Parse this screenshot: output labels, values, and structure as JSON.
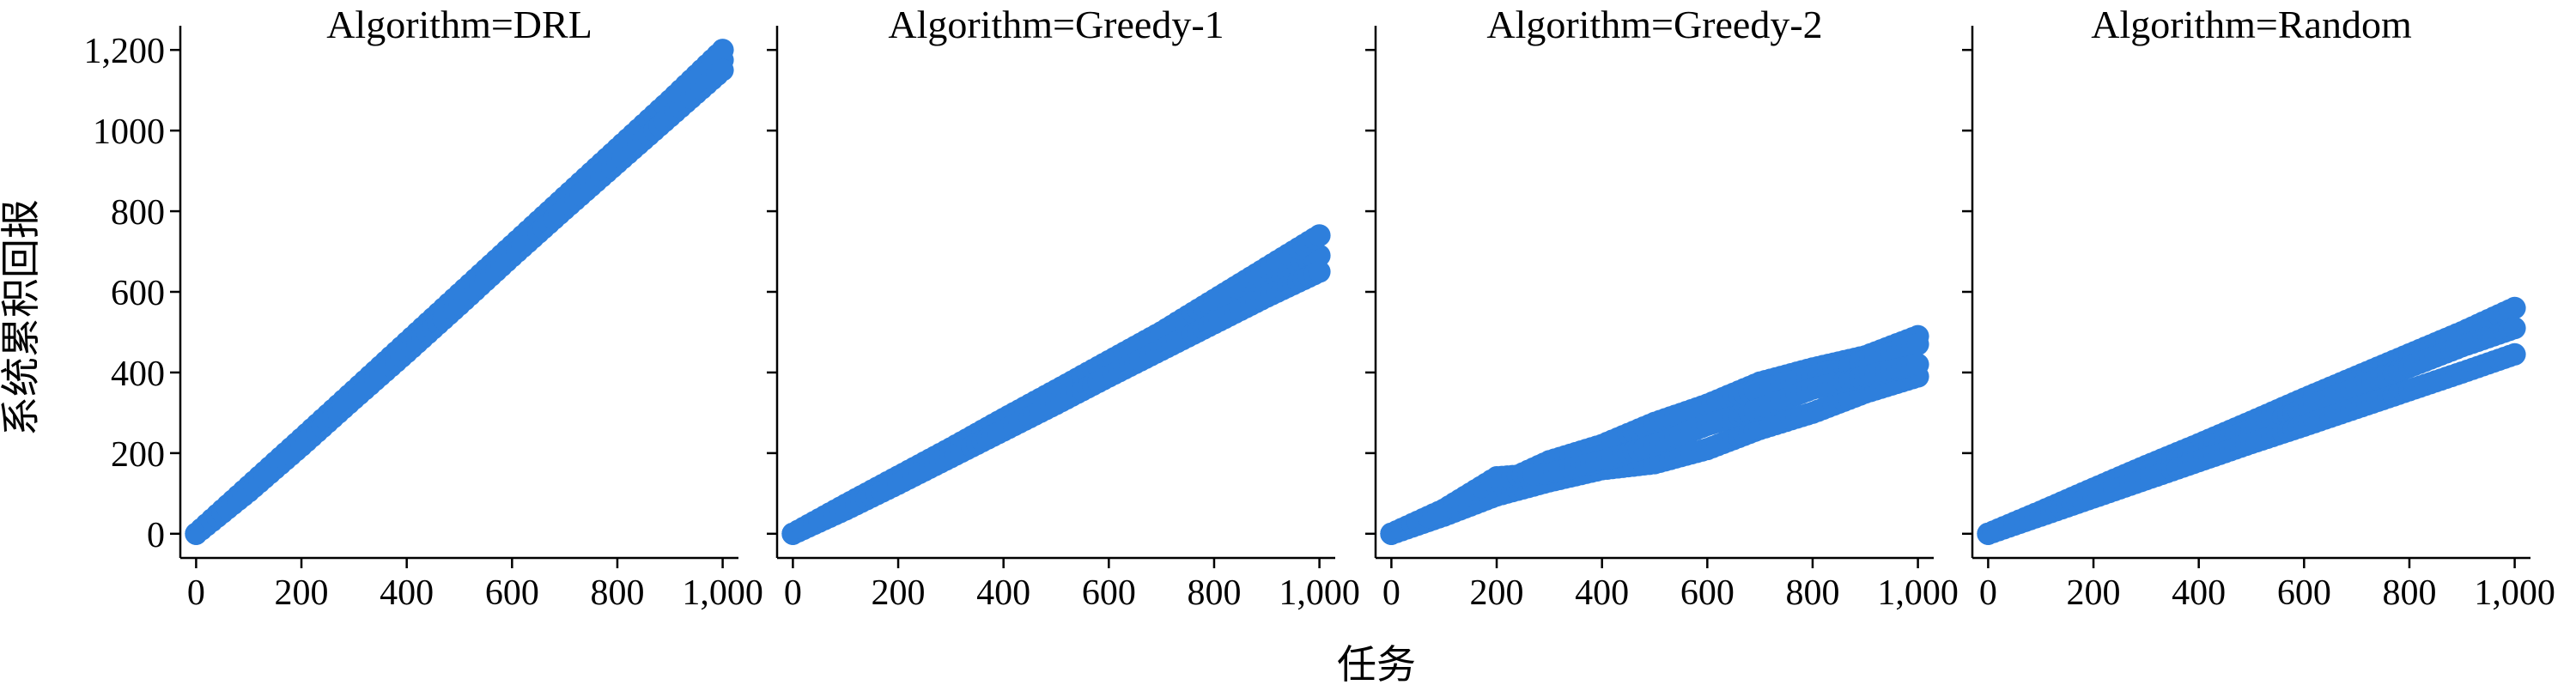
{
  "chart_data": {
    "type": "scatter",
    "ylabel": "系统累积回报",
    "xlabel": "任务",
    "xlim": [
      -30,
      1030
    ],
    "ylim": [
      -60,
      1260
    ],
    "x_ticks": [
      0,
      200,
      400,
      600,
      800,
      1000
    ],
    "x_tick_labels": [
      "0",
      "200",
      "400",
      "600",
      "800",
      "1,000"
    ],
    "y_ticks": [
      0,
      200,
      400,
      600,
      800,
      1000,
      1200
    ],
    "y_tick_labels": [
      "0",
      "200",
      "400",
      "600",
      "800",
      "1000",
      "1,200"
    ],
    "grid": false,
    "point_color": "#2e7fdc",
    "panels": [
      {
        "title": "Algorithm=DRL",
        "series": [
          {
            "x": [
              0,
              100,
              200,
              300,
              400,
              500,
              600,
              700,
              800,
              900,
              1000
            ],
            "y": [
              0,
              110,
              225,
              345,
              460,
              580,
              700,
              820,
              935,
              1050,
              1175
            ]
          },
          {
            "x": [
              0,
              100,
              200,
              300,
              400,
              500,
              600,
              700,
              800,
              900,
              1000
            ],
            "y": [
              0,
              118,
              236,
              355,
              475,
              595,
              715,
              835,
              955,
              1075,
              1200
            ]
          },
          {
            "x": [
              0,
              100,
              200,
              300,
              400,
              500,
              600,
              700,
              800,
              900,
              1000
            ],
            "y": [
              0,
              105,
              218,
              335,
              450,
              568,
              688,
              805,
              920,
              1035,
              1150
            ]
          }
        ]
      },
      {
        "title": "Algorithm=Greedy-1",
        "series": [
          {
            "x": [
              0,
              100,
              200,
              300,
              400,
              500,
              600,
              700,
              800,
              900,
              1000
            ],
            "y": [
              0,
              65,
              132,
              200,
              268,
              338,
              408,
              478,
              548,
              618,
              690
            ]
          },
          {
            "x": [
              0,
              100,
              200,
              300,
              400,
              500,
              600,
              700,
              800,
              900,
              1000
            ],
            "y": [
              0,
              72,
              142,
              212,
              285,
              356,
              428,
              500,
              580,
              660,
              740
            ]
          },
          {
            "x": [
              0,
              100,
              200,
              300,
              400,
              500,
              600,
              700,
              800,
              900,
              1000
            ],
            "y": [
              0,
              60,
              124,
              190,
              256,
              322,
              390,
              456,
              522,
              588,
              650
            ]
          }
        ]
      },
      {
        "title": "Algorithm=Greedy-2",
        "series": [
          {
            "x": [
              0,
              100,
              200,
              300,
              400,
              500,
              600,
              700,
              800,
              900,
              1000
            ],
            "y": [
              0,
              50,
              110,
              165,
              210,
              260,
              320,
              375,
              410,
              440,
              490
            ]
          },
          {
            "x": [
              0,
              100,
              200,
              300,
              400,
              500,
              600,
              700,
              800,
              900,
              1000
            ],
            "y": [
              0,
              55,
              120,
              180,
              220,
              275,
              320,
              360,
              390,
              430,
              470
            ]
          },
          {
            "x": [
              0,
              100,
              200,
              300,
              400,
              500,
              600,
              700,
              800,
              900,
              1000
            ],
            "y": [
              0,
              45,
              95,
              130,
              160,
              175,
              210,
              260,
              300,
              350,
              390
            ]
          },
          {
            "x": [
              0,
              100,
              200,
              300,
              400,
              500,
              600,
              700,
              800,
              900,
              1000
            ],
            "y": [
              0,
              60,
              140,
              150,
              180,
              220,
              270,
              310,
              360,
              390,
              420
            ]
          }
        ]
      },
      {
        "title": "Algorithm=Random",
        "series": [
          {
            "x": [
              0,
              100,
              200,
              300,
              400,
              500,
              600,
              700,
              800,
              900,
              1000
            ],
            "y": [
              0,
              55,
              112,
              168,
              222,
              278,
              335,
              390,
              445,
              500,
              560
            ]
          },
          {
            "x": [
              0,
              100,
              200,
              300,
              400,
              500,
              600,
              700,
              800,
              900,
              1000
            ],
            "y": [
              0,
              50,
              102,
              154,
              205,
              258,
              310,
              362,
              414,
              465,
              510
            ]
          },
          {
            "x": [
              0,
              100,
              200,
              300,
              400,
              500,
              600,
              700,
              800,
              900,
              1000
            ],
            "y": [
              0,
              45,
              90,
              135,
              180,
              225,
              268,
              312,
              356,
              400,
              445
            ]
          }
        ]
      }
    ]
  }
}
